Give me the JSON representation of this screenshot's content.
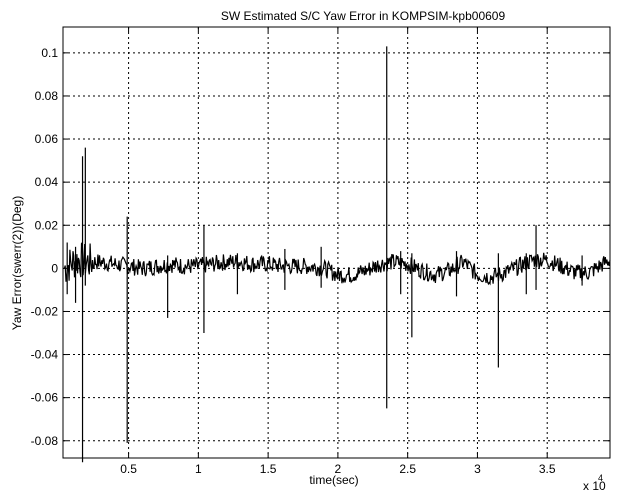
{
  "chart_data": {
    "type": "line",
    "title": "SW Estimated S/C Yaw Error in KOMPSIM-kpb00609",
    "xlabel": "time(sec)",
    "ylabel": "Yaw Error(swerr(2))(Deg)",
    "x_multiplier_label": "x 10",
    "x_multiplier_exponent": "4",
    "xlim": [
      0.03,
      3.95
    ],
    "ylim": [
      -0.088,
      0.112
    ],
    "grid": true,
    "xticks": [
      0.5,
      1,
      1.5,
      2,
      2.5,
      3,
      3.5
    ],
    "xtick_labels": [
      "0.5",
      "1",
      "1.5",
      "2",
      "2.5",
      "3",
      "3.5"
    ],
    "yticks": [
      0.1,
      0.08,
      0.06,
      0.04,
      0.02,
      0,
      -0.02,
      -0.04,
      -0.06,
      -0.08
    ],
    "ytick_labels": [
      "0.1",
      "0.08",
      "0.06",
      "0.04",
      "0.02",
      "0",
      "-0.02",
      "-0.04",
      "-0.06",
      "-0.08"
    ],
    "baseline": {
      "x": [
        0.04,
        0.1,
        0.15,
        0.2,
        0.3,
        0.4,
        0.5,
        0.6,
        0.7,
        0.8,
        0.9,
        1.0,
        1.1,
        1.2,
        1.3,
        1.4,
        1.5,
        1.6,
        1.7,
        1.8,
        1.9,
        2.0,
        2.1,
        2.2,
        2.3,
        2.4,
        2.5,
        2.6,
        2.7,
        2.8,
        2.9,
        3.0,
        3.1,
        3.2,
        3.3,
        3.4,
        3.5,
        3.6,
        3.7,
        3.8,
        3.9,
        3.95
      ],
      "y": [
        0.0,
        0.003,
        0.004,
        0.003,
        0.003,
        0.002,
        0.001,
        0.0,
        0.001,
        0.002,
        0.001,
        0.001,
        0.002,
        0.003,
        0.003,
        0.002,
        0.002,
        0.001,
        0.001,
        0.001,
        0.0,
        -0.003,
        -0.003,
        -0.001,
        0.002,
        0.003,
        0.002,
        -0.001,
        -0.003,
        -0.001,
        0.003,
        -0.003,
        -0.004,
        -0.002,
        0.001,
        0.004,
        0.004,
        0.001,
        -0.002,
        -0.002,
        0.002,
        0.004
      ]
    },
    "noise_amplitude": 0.004,
    "spikes": [
      {
        "x": 0.06,
        "y_min": -0.012,
        "y_max": 0.012
      },
      {
        "x": 0.12,
        "y_min": -0.016,
        "y_max": 0.01
      },
      {
        "x": 0.17,
        "y_min": -0.09,
        "y_max": 0.052
      },
      {
        "x": 0.19,
        "y_min": -0.008,
        "y_max": 0.056
      },
      {
        "x": 0.49,
        "y_min": -0.081,
        "y_max": 0.024
      },
      {
        "x": 0.78,
        "y_min": -0.023,
        "y_max": 0.006
      },
      {
        "x": 1.04,
        "y_min": -0.03,
        "y_max": 0.02
      },
      {
        "x": 1.28,
        "y_min": -0.012,
        "y_max": 0.007
      },
      {
        "x": 1.62,
        "y_min": -0.01,
        "y_max": 0.009
      },
      {
        "x": 1.88,
        "y_min": -0.009,
        "y_max": 0.01
      },
      {
        "x": 2.35,
        "y_min": -0.065,
        "y_max": 0.103
      },
      {
        "x": 2.53,
        "y_min": -0.032,
        "y_max": 0.007
      },
      {
        "x": 2.45,
        "y_min": -0.012,
        "y_max": 0.008
      },
      {
        "x": 2.85,
        "y_min": -0.013,
        "y_max": 0.008
      },
      {
        "x": 3.15,
        "y_min": -0.046,
        "y_max": 0.007
      },
      {
        "x": 3.35,
        "y_min": -0.012,
        "y_max": 0.007
      },
      {
        "x": 3.42,
        "y_min": -0.01,
        "y_max": 0.02
      },
      {
        "x": 3.75,
        "y_min": -0.008,
        "y_max": 0.006
      }
    ]
  }
}
